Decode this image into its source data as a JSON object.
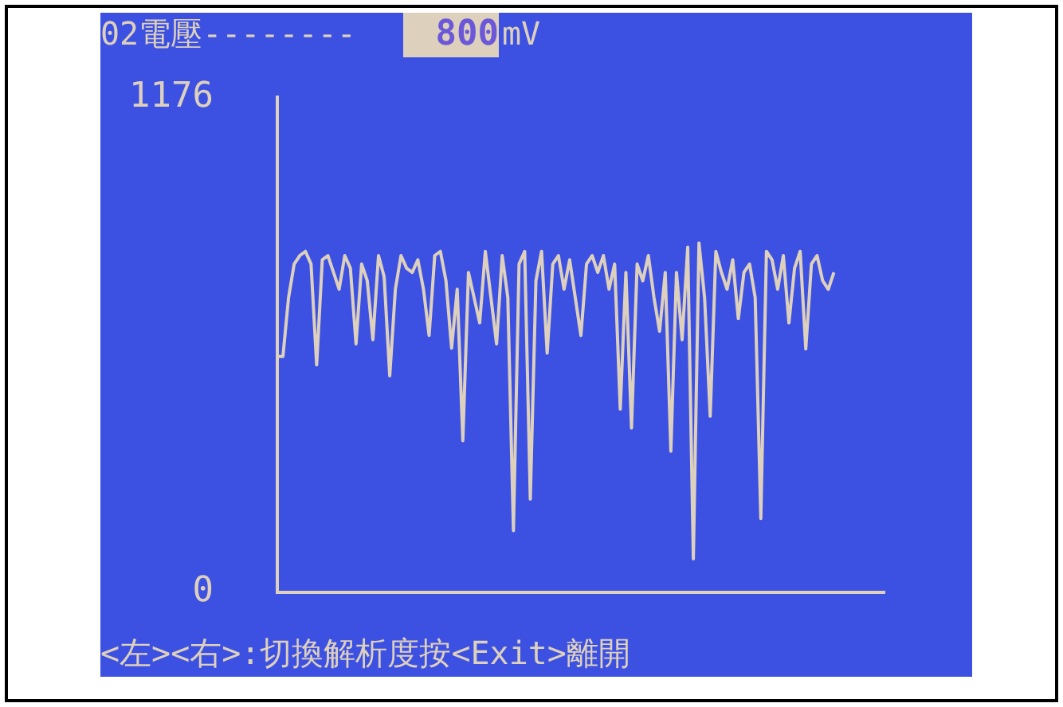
{
  "chart_data": {
    "type": "line",
    "title": "02電壓--------",
    "annotations": [
      "800",
      "mV",
      "<左><右>:切換解析度按<Exit>離開"
    ],
    "categories": [
      null,
      null,
      null,
      null,
      null,
      null,
      null,
      null,
      null,
      null,
      null,
      null,
      null,
      null,
      null,
      null,
      null,
      null,
      null,
      null,
      null,
      null,
      null,
      null,
      null,
      null,
      null,
      null,
      null,
      null,
      null,
      null,
      null,
      null,
      null,
      null,
      null,
      null,
      null,
      null,
      null,
      null,
      null,
      null,
      null,
      null,
      null,
      null,
      null,
      null,
      null,
      null,
      null,
      null,
      null,
      null,
      null,
      null,
      null,
      null,
      null,
      null,
      null,
      null,
      null,
      null,
      null,
      null,
      null,
      null,
      null,
      null,
      null,
      null,
      null,
      null,
      null,
      null,
      null,
      null,
      null,
      null,
      null,
      null,
      null,
      null,
      null,
      null,
      null,
      null,
      null,
      null,
      null,
      null,
      null,
      null,
      null,
      null,
      null,
      null,
      null,
      null,
      null,
      null,
      null,
      null,
      null,
      null,
      null
    ],
    "values": [
      560,
      560,
      700,
      780,
      800,
      810,
      780,
      540,
      790,
      800,
      760,
      720,
      800,
      770,
      590,
      780,
      740,
      600,
      800,
      750,
      514,
      720,
      800,
      770,
      760,
      790,
      720,
      610,
      800,
      810,
      740,
      580,
      720,
      360,
      760,
      700,
      640,
      810,
      700,
      590,
      800,
      700,
      146,
      780,
      810,
      221,
      740,
      810,
      568,
      780,
      800,
      720,
      790,
      700,
      610,
      780,
      800,
      760,
      800,
      720,
      780,
      435,
      760,
      390,
      780,
      740,
      800,
      700,
      620,
      760,
      335,
      760,
      600,
      820,
      79,
      830,
      700,
      418,
      810,
      760,
      720,
      790,
      650,
      760,
      780,
      700,
      175,
      810,
      790,
      720,
      800,
      640,
      770,
      810,
      578,
      780,
      800,
      740,
      720,
      760,
      null,
      null,
      null,
      null,
      null,
      null,
      null,
      null,
      null
    ],
    "color": "#ddd0bc",
    "marker": "none",
    "ylim": [
      0,
      1176
    ],
    "yticks": [
      0,
      1176
    ]
  }
}
